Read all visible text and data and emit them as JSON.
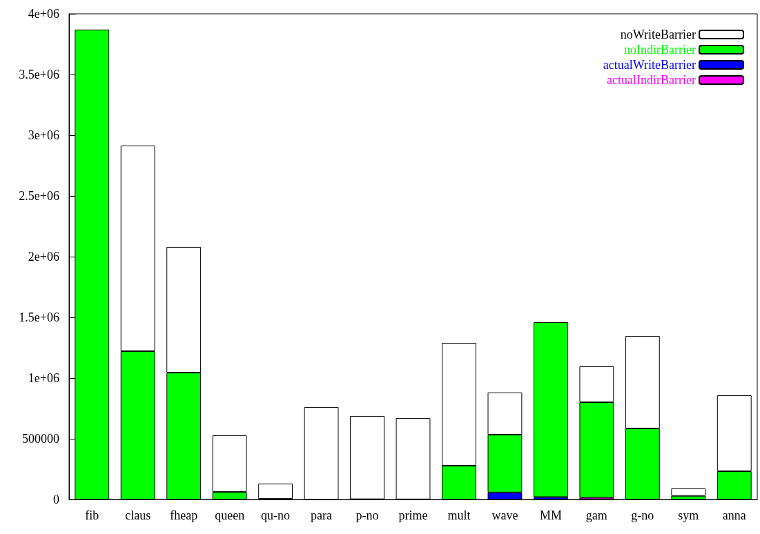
{
  "chart_data": {
    "type": "bar",
    "categories": [
      "fib",
      "claus",
      "fheap",
      "queen",
      "qu-no",
      "para",
      "p-no",
      "prime",
      "mult",
      "wave",
      "MM",
      "gam",
      "g-no",
      "sym",
      "anna"
    ],
    "stacked": true,
    "series": [
      {
        "name": "actualIndirBarrier",
        "color": "#ff00ff",
        "values": [
          null,
          null,
          null,
          null,
          null,
          null,
          null,
          null,
          null,
          null,
          null,
          15000,
          null,
          null,
          null
        ]
      },
      {
        "name": "actualWriteBarrier",
        "color": "#0000ff",
        "values": [
          null,
          null,
          null,
          null,
          null,
          null,
          null,
          null,
          null,
          58000,
          20000,
          null,
          null,
          null,
          null
        ]
      },
      {
        "name": "noIndirBarrier",
        "color": "#00ff00",
        "values": [
          3870000,
          1222000,
          1045000,
          62000,
          5000,
          null,
          2000,
          1000,
          278000,
          476000,
          1440000,
          786000,
          585000,
          30000,
          233000
        ]
      },
      {
        "name": "noWriteBarrier",
        "color": "#ffffff",
        "values": [
          null,
          1693000,
          1035000,
          466000,
          126000,
          761000,
          686000,
          669000,
          1012000,
          347000,
          null,
          296000,
          762000,
          61000,
          625000
        ]
      }
    ],
    "ylim": [
      0,
      4000000
    ],
    "yticks": [
      0,
      500000,
      {
        "value": 1000000,
        "label": "1e+06"
      },
      {
        "value": 1500000,
        "label": "1.5e+06"
      },
      {
        "value": 2000000,
        "label": "2e+06"
      },
      {
        "value": 2500000,
        "label": "2.5e+06"
      },
      {
        "value": 3000000,
        "label": "3e+06"
      },
      {
        "value": 3500000,
        "label": "3.5e+06"
      },
      {
        "value": 4000000,
        "label": "4e+06"
      }
    ],
    "grid": false,
    "legend": "top right"
  }
}
